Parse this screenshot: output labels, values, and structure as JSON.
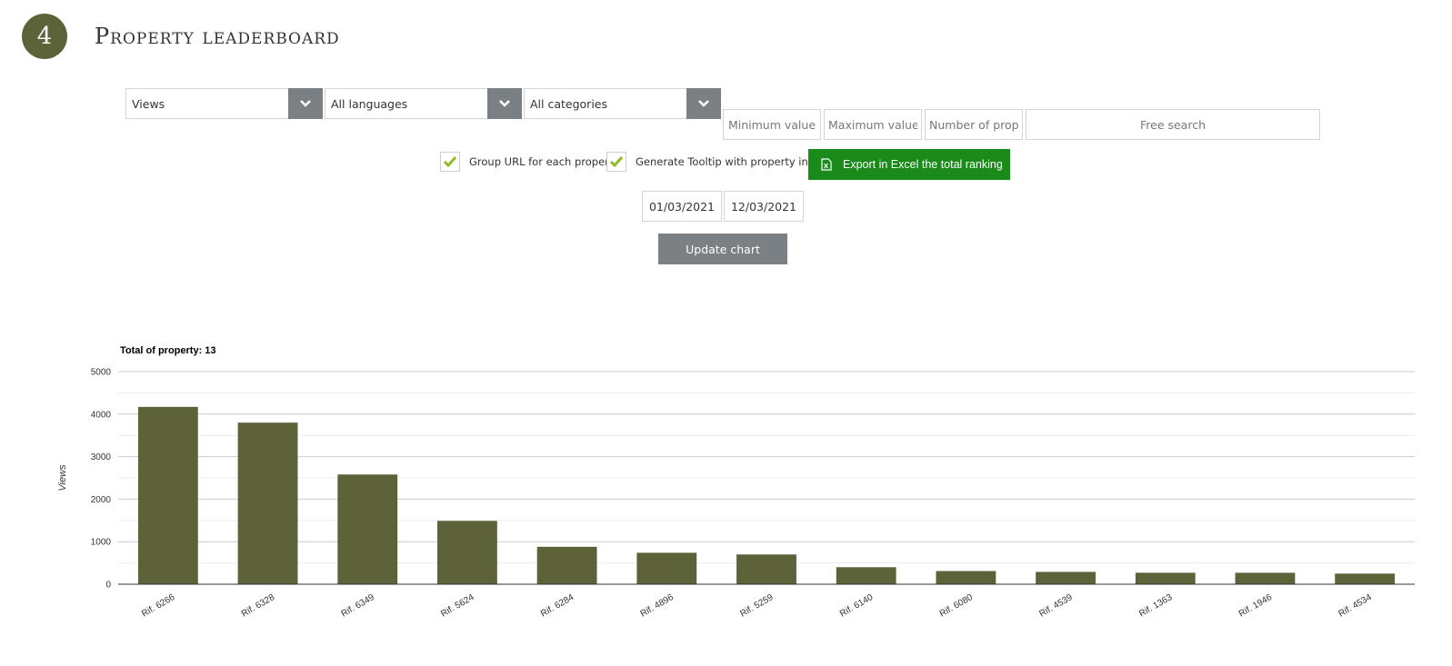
{
  "header": {
    "step_number": "4",
    "title": "Property leaderboard"
  },
  "filters": {
    "metric_select": "Views",
    "language_select": "All languages",
    "category_select": "All categories",
    "min_value_placeholder": "Minimum value",
    "max_value_placeholder": "Maximum value",
    "number_placeholder": "Number of properties",
    "free_search_placeholder": "Free search",
    "group_url_label": "Group URL for each property",
    "group_url_checked": true,
    "tooltip_label": "Generate Tooltip with property info",
    "tooltip_checked": true,
    "export_label": "Export in Excel the total ranking",
    "date_from": "01/03/2021",
    "date_to": "12/03/2021",
    "update_label": "Update chart"
  },
  "colors": {
    "bar": "#5d6239",
    "accent_green": "#1a8a1a",
    "check_green": "#8cbf26",
    "button_gray": "#7b8085"
  },
  "chart_data": {
    "type": "bar",
    "title": "Total of property: 13",
    "ylabel": "Views",
    "ylim": [
      0,
      5000
    ],
    "yticks": [
      0,
      1000,
      2000,
      3000,
      4000,
      5000
    ],
    "grid": true,
    "categories": [
      "Rif. 6266",
      "Rif. 6328",
      "Rif. 6349",
      "Rif. 5624",
      "Rif. 6284",
      "Rif. 4896",
      "Rif. 5259",
      "Rif. 6140",
      "Rif. 6080",
      "Rif. 4539",
      "Rif. 1363",
      "Rif. 1946",
      "Rif. 4534"
    ],
    "values": [
      4170,
      3800,
      2580,
      1490,
      880,
      740,
      700,
      400,
      310,
      290,
      270,
      270,
      250
    ]
  }
}
